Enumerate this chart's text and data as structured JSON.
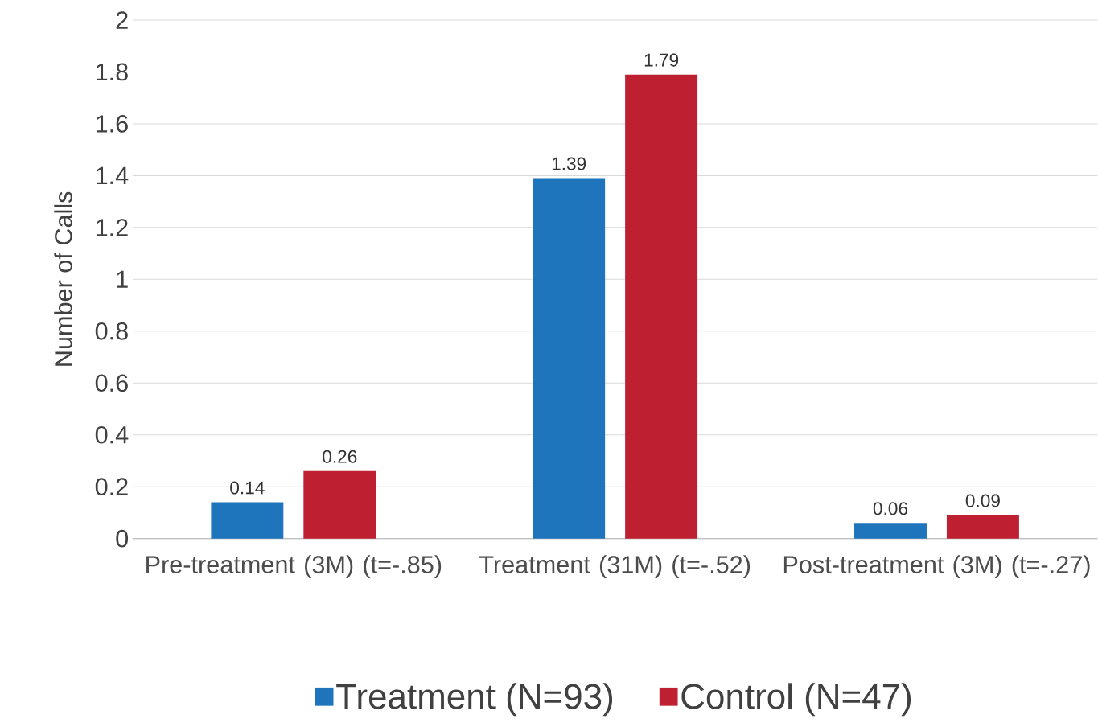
{
  "chart_data": {
    "type": "bar",
    "ylabel": "Number of Calls",
    "categories": [
      "Pre-treatment (3M) (t=-.85)",
      "Treatment (31M) (t=-.52)",
      "Post-treatment (3M) (t=-.27)"
    ],
    "series": [
      {
        "name": "Treatment (N=93)",
        "color": "#1f75bc",
        "values": [
          0.14,
          1.39,
          0.06
        ]
      },
      {
        "name": "Control (N=47)",
        "color": "#be2031",
        "values": [
          0.26,
          1.79,
          0.09
        ]
      }
    ],
    "ylim": [
      0,
      2
    ],
    "yticks": [
      0,
      0.2,
      0.4,
      0.6,
      0.8,
      1,
      1.2,
      1.4,
      1.6,
      1.8,
      2
    ],
    "grid": "y",
    "legend": "bottom",
    "data_labels": true
  }
}
